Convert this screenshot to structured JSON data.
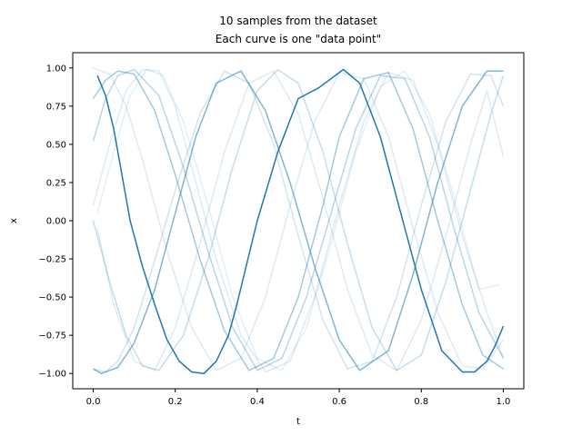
{
  "chart_data": {
    "type": "line",
    "title": "10 samples from the dataset",
    "subtitle": "Each curve is one \"data point\"",
    "xlabel": "t",
    "ylabel": "x",
    "xlim": [
      -0.05,
      1.05
    ],
    "ylim": [
      -1.1,
      1.1
    ],
    "x_ticks": [
      0.0,
      0.2,
      0.4,
      0.6,
      0.8,
      1.0
    ],
    "x_tick_labels": [
      "0.0",
      "0.2",
      "0.4",
      "0.6",
      "0.8",
      "1.0"
    ],
    "y_ticks": [
      1.0,
      0.75,
      0.5,
      0.25,
      0.0,
      -0.25,
      -0.5,
      -0.75,
      -1.0
    ],
    "y_tick_labels": [
      "1.00",
      "0.75",
      "0.50",
      "0.25",
      "0.00",
      "−0.25",
      "−0.50",
      "−0.75",
      "−1.00"
    ],
    "grid": false,
    "legend": "none",
    "color": "#1f77b4",
    "series": [
      {
        "x": [
          0.01,
          0.03,
          0.05,
          0.07,
          0.09,
          0.12,
          0.15,
          0.18,
          0.21,
          0.24,
          0.27,
          0.3,
          0.33,
          0.35,
          0.4,
          0.45,
          0.5,
          0.55,
          0.61,
          0.65,
          0.7,
          0.75,
          0.8,
          0.85,
          0.9,
          0.93,
          0.96,
          0.98,
          1.0
        ],
        "y": [
          0.95,
          0.82,
          0.6,
          0.3,
          0.0,
          -0.3,
          -0.55,
          -0.78,
          -0.92,
          -0.99,
          -1.0,
          -0.92,
          -0.75,
          -0.55,
          0.0,
          0.45,
          0.8,
          0.87,
          0.99,
          0.9,
          0.55,
          0.05,
          -0.45,
          -0.85,
          -0.99,
          -0.99,
          -0.92,
          -0.82,
          -0.69
        ],
        "opacity": 1.0
      },
      {
        "x": [
          0.0,
          0.02,
          0.06,
          0.1,
          0.15,
          0.2,
          0.25,
          0.3,
          0.36,
          0.42,
          0.48,
          0.54,
          0.6,
          0.65,
          0.72,
          0.78,
          0.84,
          0.9,
          0.96,
          1.0
        ],
        "y": [
          -0.97,
          -1.0,
          -0.96,
          -0.8,
          -0.45,
          0.05,
          0.55,
          0.9,
          0.98,
          0.72,
          0.25,
          -0.3,
          -0.78,
          -0.98,
          -0.85,
          -0.35,
          0.25,
          0.75,
          0.98,
          0.98
        ],
        "opacity": 0.55
      },
      {
        "x": [
          0.0,
          0.03,
          0.06,
          0.1,
          0.15,
          0.2,
          0.26,
          0.32,
          0.38,
          0.44,
          0.5,
          0.56,
          0.6,
          0.66,
          0.72,
          0.78,
          0.84,
          0.9,
          0.95,
          1.0
        ],
        "y": [
          0.8,
          0.92,
          0.98,
          0.96,
          0.72,
          0.3,
          -0.25,
          -0.72,
          -0.98,
          -0.9,
          -0.5,
          0.1,
          0.55,
          0.93,
          0.97,
          0.6,
          0.0,
          -0.55,
          -0.88,
          -0.97
        ],
        "opacity": 0.4
      },
      {
        "x": [
          0.0,
          0.04,
          0.08,
          0.12,
          0.16,
          0.22,
          0.28,
          0.34,
          0.4,
          0.45,
          0.5,
          0.56,
          0.62,
          0.68,
          0.74,
          0.8,
          0.86,
          0.92,
          0.97,
          1.0
        ],
        "y": [
          0.0,
          -0.4,
          -0.75,
          -0.95,
          -0.98,
          -0.75,
          -0.25,
          0.35,
          0.85,
          0.99,
          0.9,
          0.45,
          -0.15,
          -0.7,
          -0.98,
          -0.88,
          -0.4,
          0.2,
          0.7,
          0.95
        ],
        "opacity": 0.25
      },
      {
        "x": [
          0.0,
          0.03,
          0.06,
          0.1,
          0.16,
          0.22,
          0.28,
          0.34,
          0.4,
          0.46,
          0.52,
          0.58,
          0.64,
          0.7,
          0.76,
          0.82,
          0.88,
          0.94,
          1.0
        ],
        "y": [
          0.52,
          0.8,
          0.95,
          0.99,
          0.82,
          0.35,
          -0.2,
          -0.7,
          -0.98,
          -0.9,
          -0.5,
          0.05,
          0.6,
          0.95,
          0.93,
          0.55,
          -0.05,
          -0.6,
          -0.9
        ],
        "opacity": 0.3
      },
      {
        "x": [
          0.0,
          0.03,
          0.06,
          0.1,
          0.14,
          0.2,
          0.26,
          0.32,
          0.38,
          0.44,
          0.5,
          0.56,
          0.62,
          0.68,
          0.74,
          0.8,
          0.86,
          0.92,
          0.97,
          1.0
        ],
        "y": [
          -0.97,
          -0.99,
          -0.92,
          -0.7,
          -0.35,
          0.2,
          0.7,
          0.98,
          0.9,
          0.5,
          -0.1,
          -0.65,
          -0.97,
          -0.92,
          -0.5,
          0.1,
          0.65,
          0.96,
          0.95,
          0.75
        ],
        "opacity": 0.2
      },
      {
        "x": [
          0.0,
          0.04,
          0.08,
          0.12,
          0.16,
          0.2,
          0.24,
          0.3,
          0.36,
          0.42,
          0.48,
          0.54,
          0.6,
          0.66,
          0.72,
          0.78,
          0.84,
          0.9,
          0.96,
          1.0
        ],
        "y": [
          0.1,
          0.5,
          0.85,
          0.99,
          0.98,
          0.75,
          0.35,
          -0.25,
          -0.75,
          -0.99,
          -0.92,
          -0.5,
          0.1,
          0.65,
          0.97,
          0.92,
          0.5,
          -0.1,
          -0.6,
          -0.9
        ],
        "opacity": 0.15
      },
      {
        "x": [
          0.0,
          0.04,
          0.08,
          0.12,
          0.18,
          0.24,
          0.3,
          0.36,
          0.42,
          0.48,
          0.54,
          0.6,
          0.66,
          0.72,
          0.78,
          0.84,
          0.9,
          0.95,
          1.0
        ],
        "y": [
          1.0,
          0.96,
          0.75,
          0.4,
          -0.2,
          -0.7,
          -0.98,
          -0.9,
          -0.5,
          0.1,
          0.65,
          0.97,
          0.93,
          0.55,
          -0.05,
          -0.6,
          -0.95,
          -0.97,
          -0.78
        ],
        "opacity": 0.15
      },
      {
        "x": [
          0.01,
          0.05,
          0.09,
          0.13,
          0.17,
          0.22,
          0.28,
          0.34,
          0.4,
          0.46,
          0.52,
          0.58,
          0.64,
          0.7,
          0.76,
          0.82,
          0.88,
          0.94,
          0.99
        ],
        "y": [
          0.05,
          0.45,
          0.82,
          0.99,
          0.95,
          0.65,
          0.1,
          -0.5,
          -0.9,
          -0.98,
          -0.7,
          -0.15,
          0.45,
          0.88,
          0.98,
          0.7,
          0.15,
          -0.45,
          -0.42
        ],
        "opacity": 0.12
      },
      {
        "x": [
          0.01,
          0.05,
          0.1,
          0.15,
          0.2,
          0.26,
          0.32,
          0.38,
          0.44,
          0.5,
          0.56,
          0.62,
          0.68,
          0.74,
          0.8,
          0.86,
          0.92,
          0.96,
          1.0
        ],
        "y": [
          -0.05,
          -0.55,
          -0.92,
          -0.98,
          -0.7,
          -0.15,
          0.45,
          0.9,
          0.98,
          0.7,
          0.15,
          -0.45,
          -0.88,
          -0.98,
          -0.65,
          -0.1,
          0.5,
          0.85,
          0.42
        ],
        "opacity": 0.15
      }
    ]
  }
}
